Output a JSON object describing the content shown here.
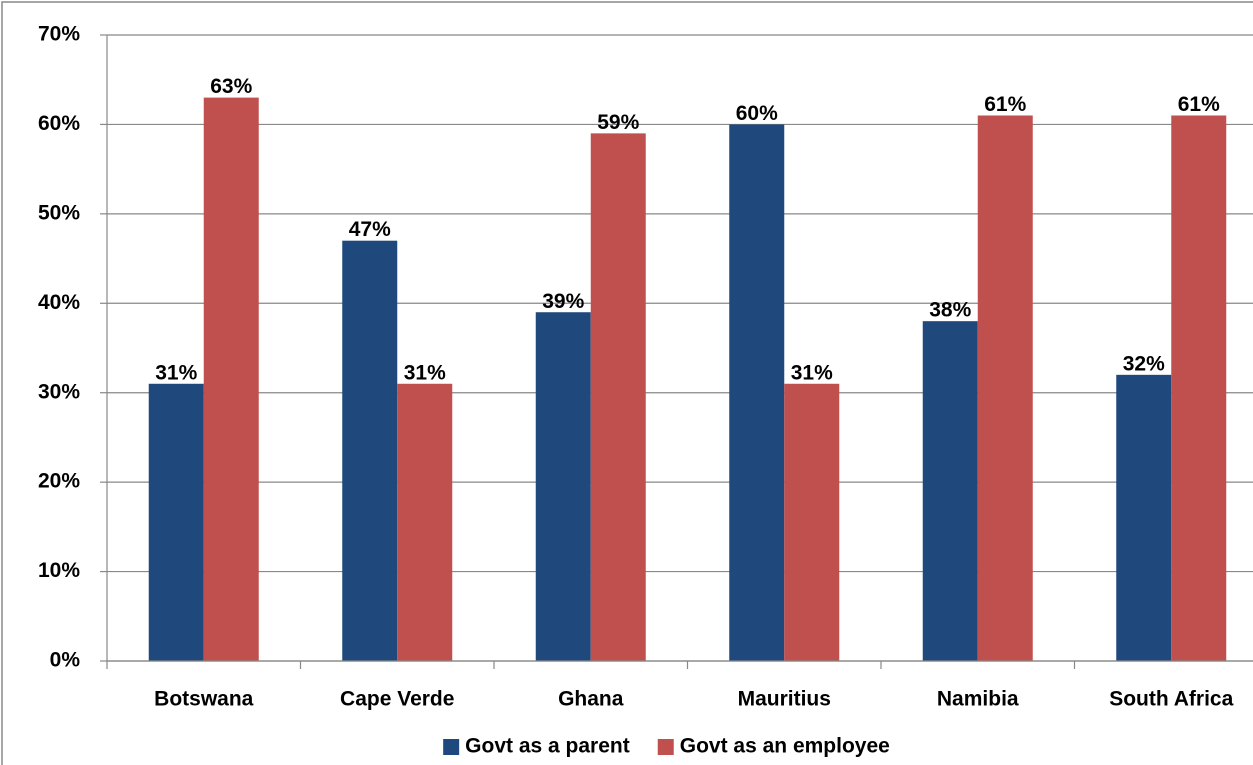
{
  "chart_data": {
    "type": "bar",
    "categories": [
      "Botswana",
      "Cape Verde",
      "Ghana",
      "Mauritius",
      "Namibia",
      "South Africa"
    ],
    "series": [
      {
        "name": "Govt as a parent",
        "color": "#1f497d",
        "values": [
          31,
          47,
          39,
          60,
          38,
          32
        ],
        "value_labels": [
          "31%",
          "47%",
          "39%",
          "60%",
          "38%",
          "32%"
        ]
      },
      {
        "name": "Govt as an employee",
        "color": "#c0504d",
        "values": [
          63,
          31,
          59,
          31,
          61,
          61
        ],
        "value_labels": [
          "63%",
          "31%",
          "59%",
          "31%",
          "61%",
          "61%"
        ]
      }
    ],
    "ylim": [
      0,
      70
    ],
    "yticks": [
      {
        "value": 0,
        "label": "0%"
      },
      {
        "value": 10,
        "label": "10%"
      },
      {
        "value": 20,
        "label": "20%"
      },
      {
        "value": 30,
        "label": "30%"
      },
      {
        "value": 40,
        "label": "40%"
      },
      {
        "value": 50,
        "label": "50%"
      },
      {
        "value": 60,
        "label": "60%"
      },
      {
        "value": 70,
        "label": "70%"
      }
    ],
    "grid": true,
    "legend": "bottom"
  }
}
